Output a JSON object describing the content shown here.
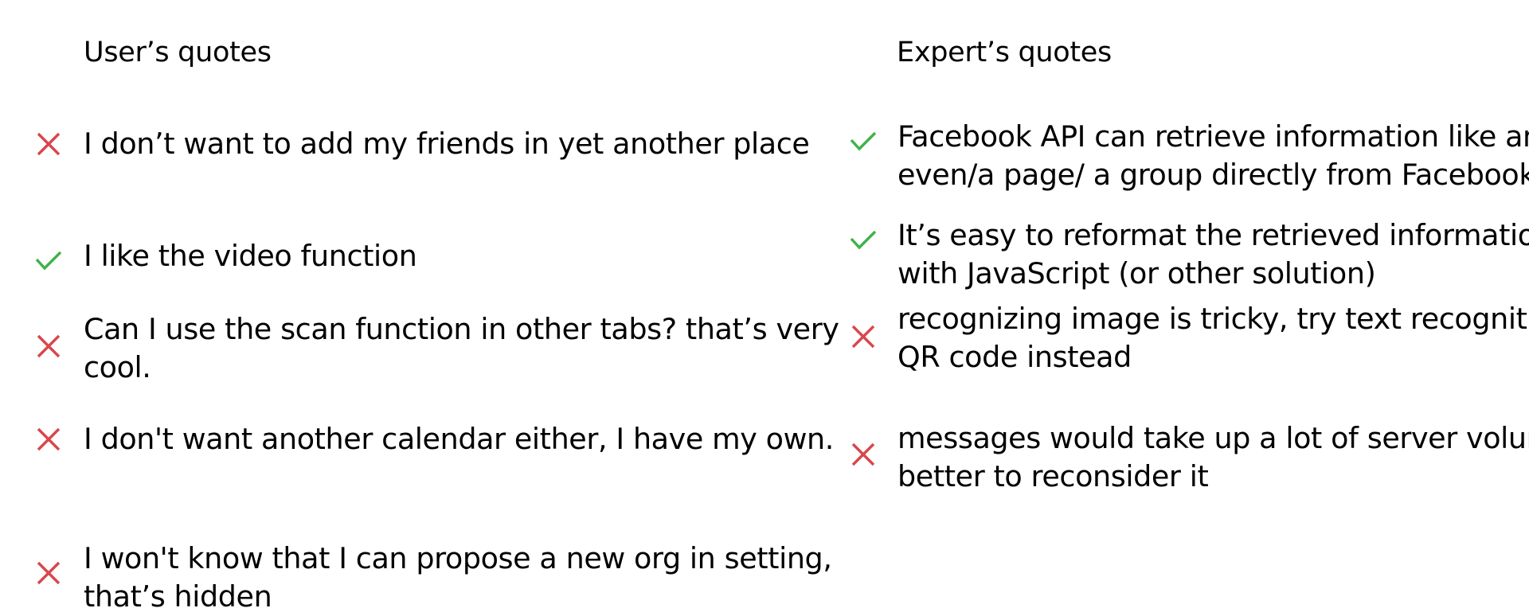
{
  "colors": {
    "cross": "#d9464b",
    "check": "#3db34a",
    "text": "#000000",
    "background": "#ffffff"
  },
  "user_column": {
    "title": "User’s quotes",
    "quotes": [
      {
        "status": "negative",
        "icon": "cross-icon",
        "lines": [
          "I don’t want to add my friends in yet another place"
        ]
      },
      {
        "status": "positive",
        "icon": "check-icon",
        "lines": [
          "I like the video function"
        ]
      },
      {
        "status": "negative",
        "icon": "cross-icon",
        "lines": [
          "Can I use the scan function in other tabs? that’s very",
          "cool."
        ]
      },
      {
        "status": "negative",
        "icon": "cross-icon",
        "lines": [
          "I don't want another calendar either, I have my own."
        ]
      },
      {
        "status": "negative",
        "icon": "cross-icon",
        "lines": [
          "I won't know that I can propose a new org in setting,",
          "that’s hidden"
        ]
      }
    ]
  },
  "expert_column": {
    "title": "Expert’s quotes",
    "quotes": [
      {
        "status": "positive",
        "icon": "check-icon",
        "lines": [
          "Facebook API can retrieve information like an",
          "even/a page/ a group directly from Facebook"
        ]
      },
      {
        "status": "positive",
        "icon": "check-icon",
        "lines": [
          "It’s easy to reformat the retrieved information",
          "with JavaScript (or other solution)"
        ]
      },
      {
        "status": "negative",
        "icon": "cross-icon",
        "lines": [
          "recognizing image is tricky, try text recognition/",
          "QR code instead"
        ]
      },
      {
        "status": "negative",
        "icon": "cross-icon",
        "lines": [
          "messages would take up a lot of server volume,",
          "better to reconsider it"
        ]
      }
    ]
  }
}
